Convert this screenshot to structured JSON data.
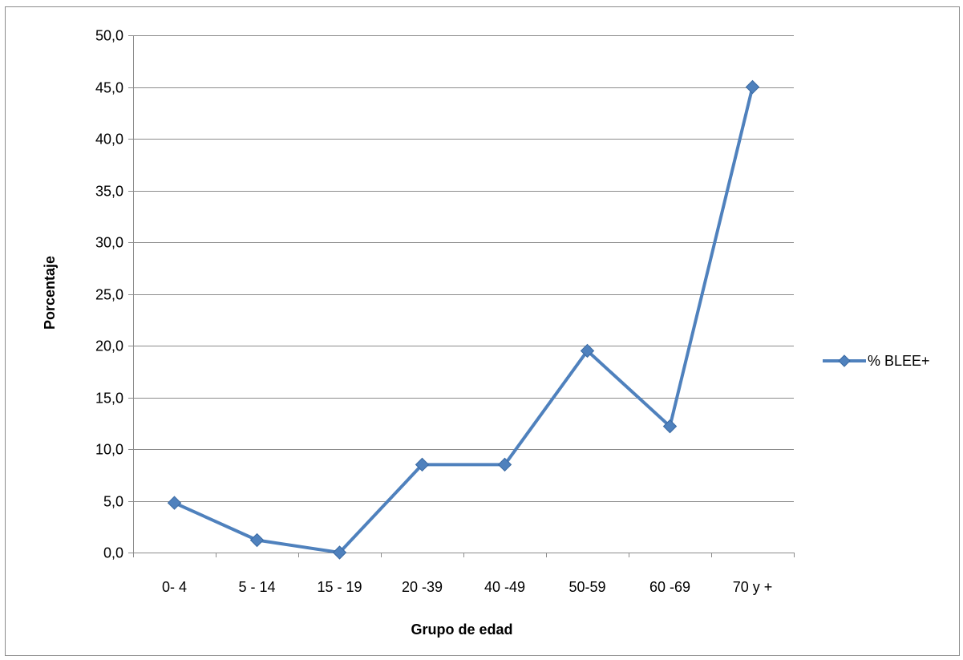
{
  "chart_data": {
    "type": "line",
    "categories": [
      "0- 4",
      "5  - 14",
      "15 - 19",
      "20 -39",
      "40 -49",
      "50-59",
      "60 -69",
      "70 y +"
    ],
    "series": [
      {
        "name": "% BLEE+",
        "values": [
          4.8,
          1.2,
          0.0,
          8.5,
          8.5,
          19.5,
          12.2,
          45.0
        ],
        "color": "#4f81bd"
      }
    ],
    "title": "",
    "xlabel": "Grupo de edad",
    "ylabel": "Porcentaje",
    "ylim": [
      0,
      50
    ],
    "ytick_labels": [
      "0,0",
      "5,0",
      "10,0",
      "15,0",
      "20,0",
      "25,0",
      "30,0",
      "35,0",
      "40,0",
      "45,0",
      "50,0"
    ],
    "grid": true,
    "legend": "right",
    "marker": "diamond"
  }
}
